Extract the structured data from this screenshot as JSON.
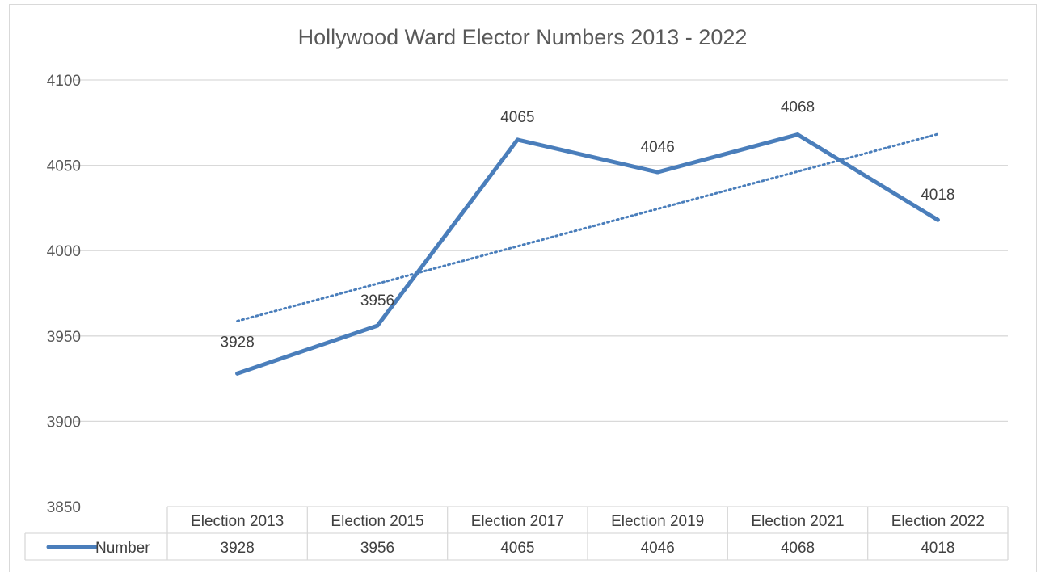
{
  "chart_data": {
    "type": "line",
    "title": "Hollywood Ward Elector Numbers 2013 - 2022",
    "categories": [
      "Election 2013",
      "Election 2015",
      "Election 2017",
      "Election 2019",
      "Election 2021",
      "Election 2022"
    ],
    "series": [
      {
        "name": "Number",
        "values": [
          3928,
          3956,
          4065,
          4046,
          4068,
          4018
        ]
      }
    ],
    "trendline": {
      "type": "linear",
      "style": "dotted",
      "series": "Number"
    },
    "ylim": [
      3850,
      4100
    ],
    "yticks": [
      3850,
      3900,
      3950,
      4000,
      4050,
      4100
    ],
    "grid": true,
    "legend": "data-table",
    "data_labels": true,
    "colors": {
      "series": "#4a7ebb",
      "grid": "#d9d9d9",
      "text": "#595959"
    }
  }
}
